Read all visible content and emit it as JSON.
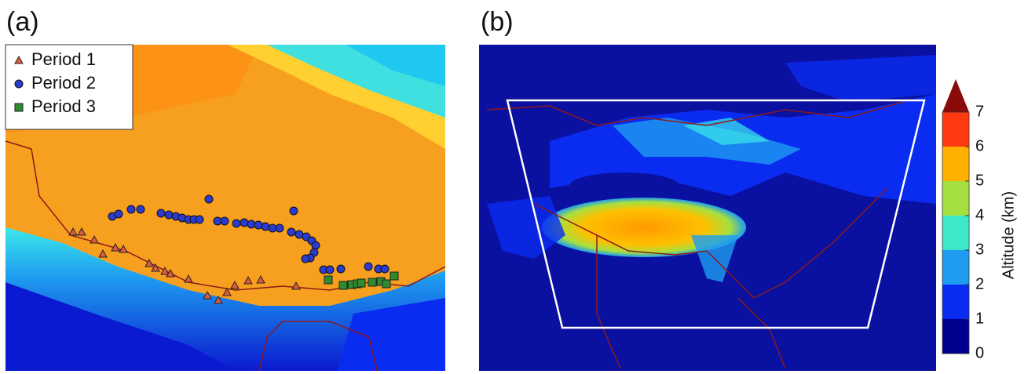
{
  "panels": [
    {
      "label": "(a)",
      "legend": [
        "Period 1",
        "Period 2",
        "Period 3"
      ],
      "legend_colors": [
        "#e05a40",
        "#2b3bd0",
        "#2e8b2e"
      ]
    },
    {
      "label": "(b)"
    }
  ],
  "colorbar": {
    "label": "Altitude (km)",
    "lim": [
      0,
      7
    ],
    "ticks": [
      0,
      1,
      2,
      3,
      4,
      5,
      6,
      7
    ],
    "colors": [
      "#00008f",
      "#0a2cf0",
      "#1e9cf0",
      "#3ce8c8",
      "#a6e040",
      "#ffb000",
      "#ff3a10"
    ],
    "extend_color": "#8b0a0a"
  }
}
